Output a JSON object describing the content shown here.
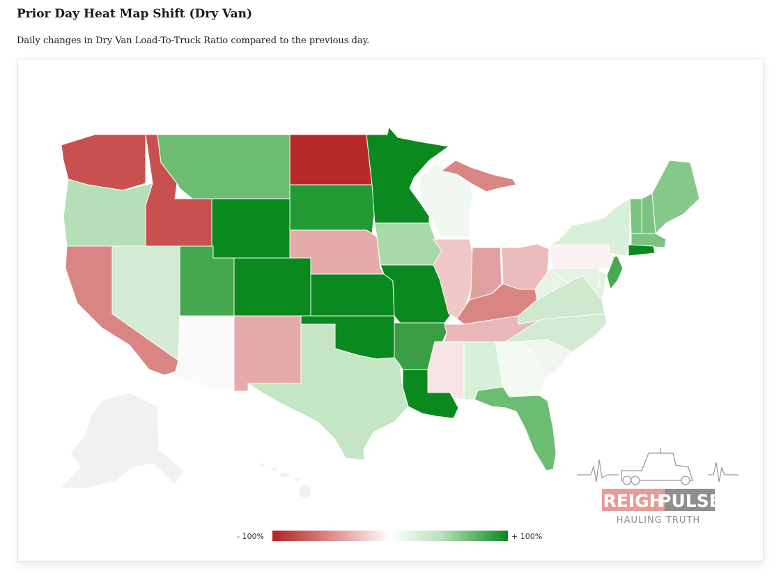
{
  "page": {
    "title": "Prior Day Heat Map Shift (Dry Van)",
    "subtitle": "Daily changes in Dry Van Load-To-Truck Ratio compared to the previous day."
  },
  "legend": {
    "min_label": "- 100%",
    "max_label": "+ 100%",
    "colors": [
      "#b22222",
      "#e8a0a0",
      "#ffffff",
      "#b8e0b8",
      "#0a8a1e"
    ]
  },
  "logo": {
    "word1": "FREIGHT",
    "word2": "PULSE",
    "tagline": "HAULING TRUTH"
  },
  "colors": {
    "strong_red": "#b82a2a",
    "red": "#c8504f",
    "mid_red": "#d98583",
    "light_red": "#e5aaaa",
    "pale_red": "#efc8c8",
    "faint_red": "#f7ebeb",
    "white": "#fafafa",
    "faint_green": "#eef6ee",
    "pale_green": "#d2ebd2",
    "light_green": "#b5dfb6",
    "green": "#6cbd72",
    "mid_green": "#46a84f",
    "strong_green": "#0a8a1e",
    "inactive": "#f1f1f1"
  },
  "states": [
    {
      "name": "WA",
      "color": "#c8504f"
    },
    {
      "name": "OR",
      "color": "#b5dfb6"
    },
    {
      "name": "CA",
      "color": "#d98583"
    },
    {
      "name": "NV",
      "color": "#d2ebd2"
    },
    {
      "name": "ID",
      "color": "#c8504f"
    },
    {
      "name": "MT",
      "color": "#6cbd72"
    },
    {
      "name": "WY",
      "color": "#0a8a1e"
    },
    {
      "name": "UT",
      "color": "#46a84f"
    },
    {
      "name": "AZ",
      "color": "#fafafa"
    },
    {
      "name": "CO",
      "color": "#0a8a1e"
    },
    {
      "name": "NM",
      "color": "#e5aaaa"
    },
    {
      "name": "ND",
      "color": "#b82a2a"
    },
    {
      "name": "SD",
      "color": "#229a32"
    },
    {
      "name": "NE",
      "color": "#e5aaaa"
    },
    {
      "name": "KS",
      "color": "#0a8a1e"
    },
    {
      "name": "OK",
      "color": "#0a8a1e"
    },
    {
      "name": "TX",
      "color": "#c4e6c4"
    },
    {
      "name": "MN",
      "color": "#0a8a1e"
    },
    {
      "name": "IA",
      "color": "#a8d9a8"
    },
    {
      "name": "MO",
      "color": "#0a8a1e"
    },
    {
      "name": "AR",
      "color": "#3a9e45"
    },
    {
      "name": "LA",
      "color": "#0a8a1e"
    },
    {
      "name": "WI",
      "color": "#f1f8f1"
    },
    {
      "name": "IL",
      "color": "#efc8c8"
    },
    {
      "name": "MI",
      "color": "#d98583"
    },
    {
      "name": "IN",
      "color": "#e0a0a0"
    },
    {
      "name": "OH",
      "color": "#ebbcbc"
    },
    {
      "name": "KY",
      "color": "#d98583"
    },
    {
      "name": "TN",
      "color": "#eab8b8"
    },
    {
      "name": "MS",
      "color": "#f7e4e4"
    },
    {
      "name": "AL",
      "color": "#d8efd8"
    },
    {
      "name": "GA",
      "color": "#f3f9f3"
    },
    {
      "name": "FL",
      "color": "#6cbd72"
    },
    {
      "name": "SC",
      "color": "#eef6ee"
    },
    {
      "name": "NC",
      "color": "#d2ebd2"
    },
    {
      "name": "VA",
      "color": "#cfe9cf"
    },
    {
      "name": "WV",
      "color": "#e6f3e6"
    },
    {
      "name": "PA",
      "color": "#fbf1f1"
    },
    {
      "name": "NY",
      "color": "#d8efd8"
    },
    {
      "name": "VT",
      "color": "#7cc381"
    },
    {
      "name": "NH",
      "color": "#7cc381"
    },
    {
      "name": "ME",
      "color": "#86c88a"
    },
    {
      "name": "MA",
      "color": "#7cc381"
    },
    {
      "name": "CT",
      "color": "#0a8a1e"
    },
    {
      "name": "NJ",
      "color": "#46a84f"
    },
    {
      "name": "MD",
      "color": "#e3f2e3"
    },
    {
      "name": "DE",
      "color": "#e3f2e3"
    },
    {
      "name": "AK",
      "color": "#f1f1f1"
    },
    {
      "name": "HI",
      "color": "#f1f1f1"
    }
  ]
}
